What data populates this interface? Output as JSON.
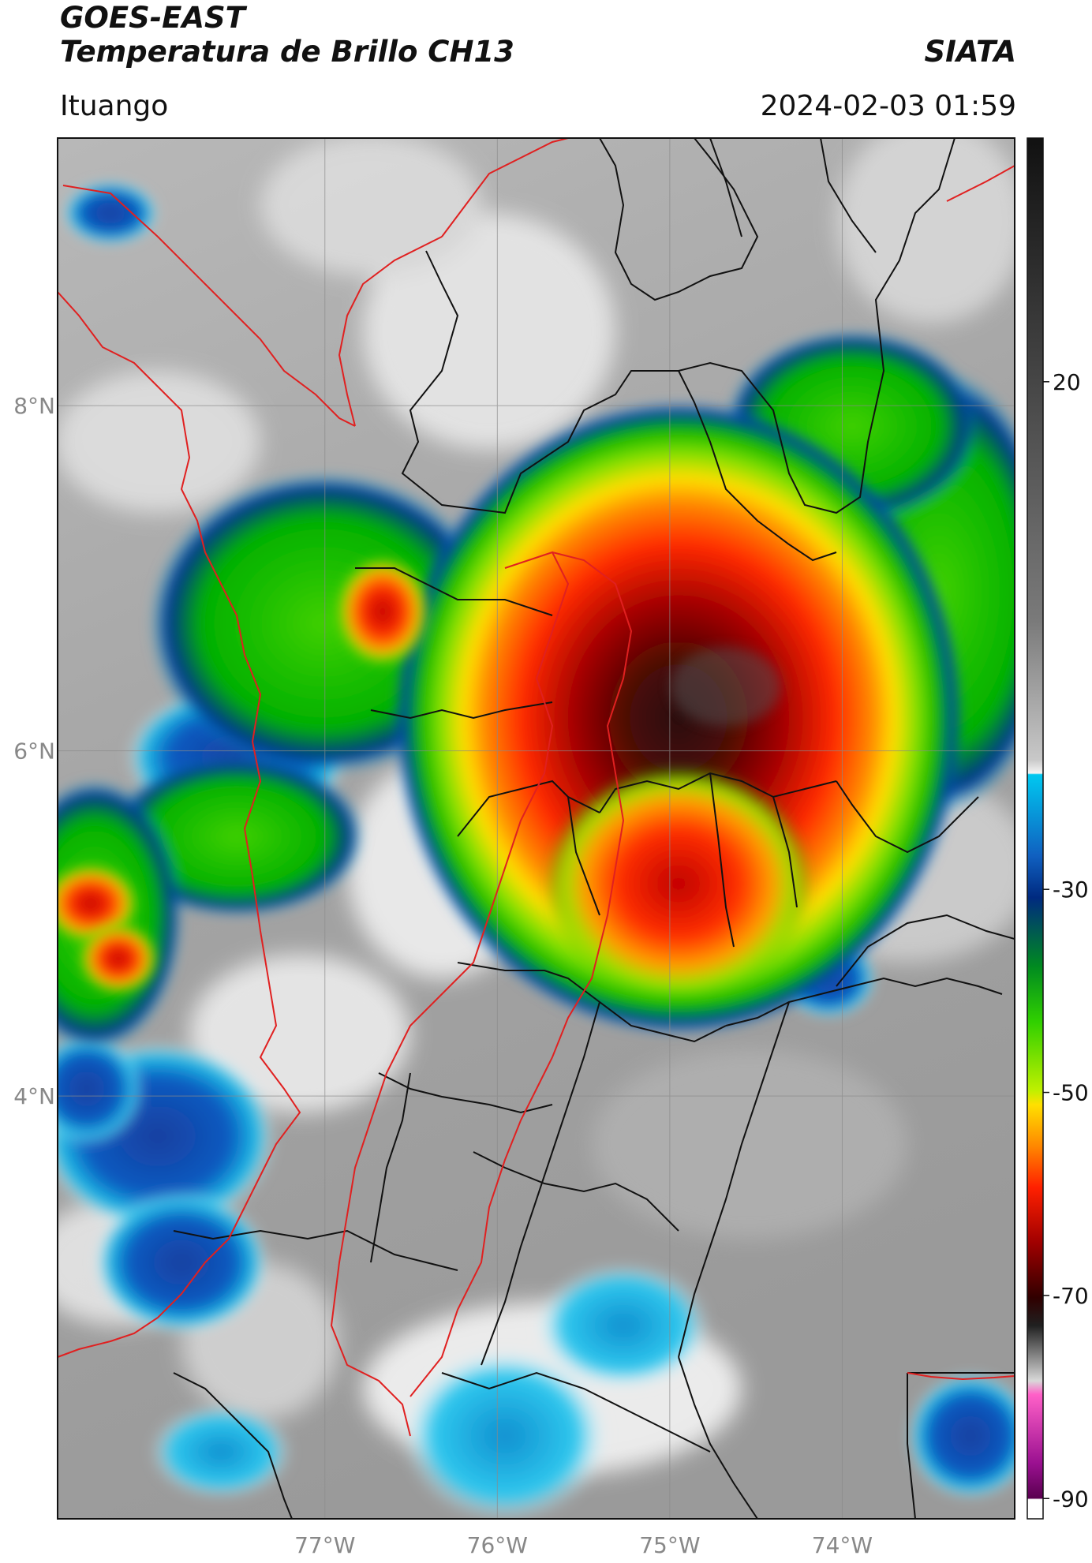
{
  "header": {
    "title_line1": "GOES-EAST",
    "title_line2": "Temperatura de Brillo CH13",
    "brand": "SIATA",
    "location": "Ituango",
    "timestamp": "2024-02-03 01:59"
  },
  "map": {
    "lon_labels": [
      "77°W",
      "76°W",
      "75°W",
      "74°W"
    ],
    "lat_labels": [
      "8°N",
      "6°N",
      "4°N"
    ],
    "lon_values": [
      -77,
      -76,
      -75,
      -74
    ],
    "lat_values": [
      8,
      6,
      4
    ],
    "lon_range": [
      -78.55,
      -73.0
    ],
    "lat_range": [
      9.55,
      1.55
    ],
    "colors": {
      "border_country": "#e02020",
      "border_department": "#111111"
    }
  },
  "colorbar": {
    "ticks": [
      "20",
      "-30",
      "-50",
      "-70",
      "-90"
    ],
    "tick_values": [
      20,
      -30,
      -50,
      -70,
      -90
    ],
    "range": [
      -92,
      44
    ]
  }
}
